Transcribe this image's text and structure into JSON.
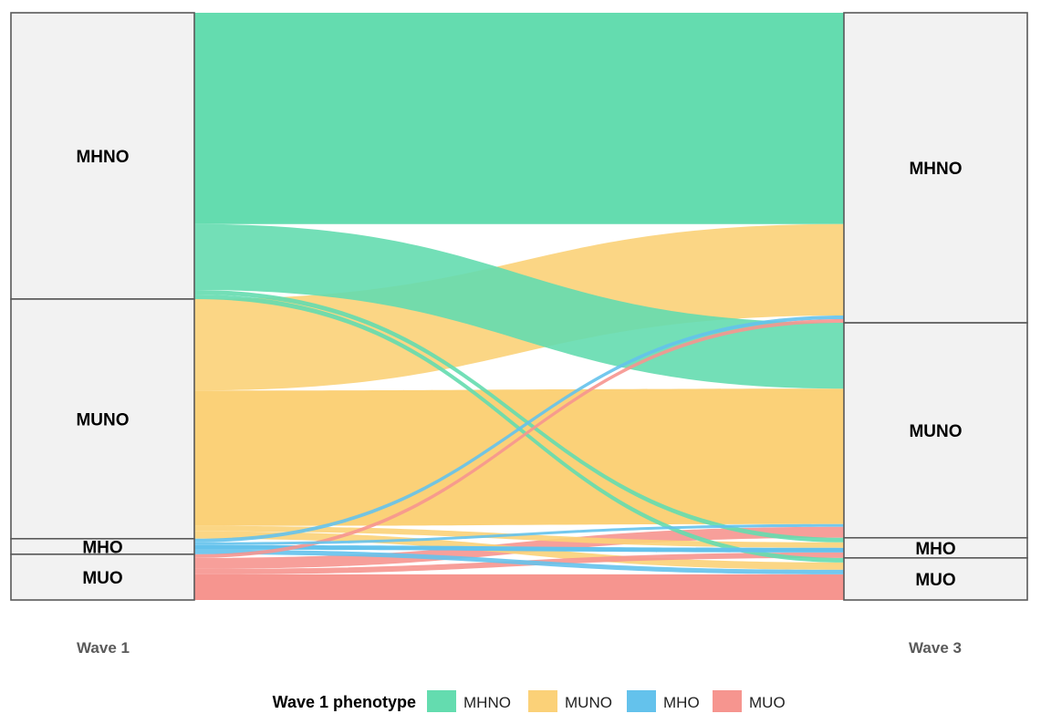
{
  "chart_data": {
    "type": "alluvial",
    "axes": [
      "Wave 1",
      "Wave 3"
    ],
    "categories": [
      "MHNO",
      "MUNO",
      "MHO",
      "MUO"
    ],
    "colors": {
      "MHNO": "#64dcaf",
      "MUNO": "#fbd178",
      "MHO": "#64c2ec",
      "MUO": "#f6958f"
    },
    "legend": {
      "title": "Wave 1 phenotype",
      "entries": [
        "MHNO",
        "MUNO",
        "MHO",
        "MUO"
      ],
      "position": "bottom"
    },
    "flows": [
      {
        "from": "MHNO",
        "to": "MHNO",
        "value": 231
      },
      {
        "from": "MHNO",
        "to": "MUNO",
        "value": 72
      },
      {
        "from": "MHNO",
        "to": "MHO",
        "value": 5
      },
      {
        "from": "MHNO",
        "to": "MUO",
        "value": 5
      },
      {
        "from": "MUNO",
        "to": "MHNO",
        "value": 100
      },
      {
        "from": "MUNO",
        "to": "MUNO",
        "value": 148
      },
      {
        "from": "MUNO",
        "to": "MHO",
        "value": 6
      },
      {
        "from": "MUNO",
        "to": "MUO",
        "value": 8
      },
      {
        "from": "MHO",
        "to": "MHNO",
        "value": 4
      },
      {
        "from": "MHO",
        "to": "MUNO",
        "value": 3
      },
      {
        "from": "MHO",
        "to": "MHO",
        "value": 5
      },
      {
        "from": "MHO",
        "to": "MUO",
        "value": 5
      },
      {
        "from": "MUO",
        "to": "MHNO",
        "value": 4
      },
      {
        "from": "MUO",
        "to": "MUNO",
        "value": 12
      },
      {
        "from": "MUO",
        "to": "MHO",
        "value": 6
      },
      {
        "from": "MUO",
        "to": "MUO",
        "value": 28
      }
    ]
  }
}
